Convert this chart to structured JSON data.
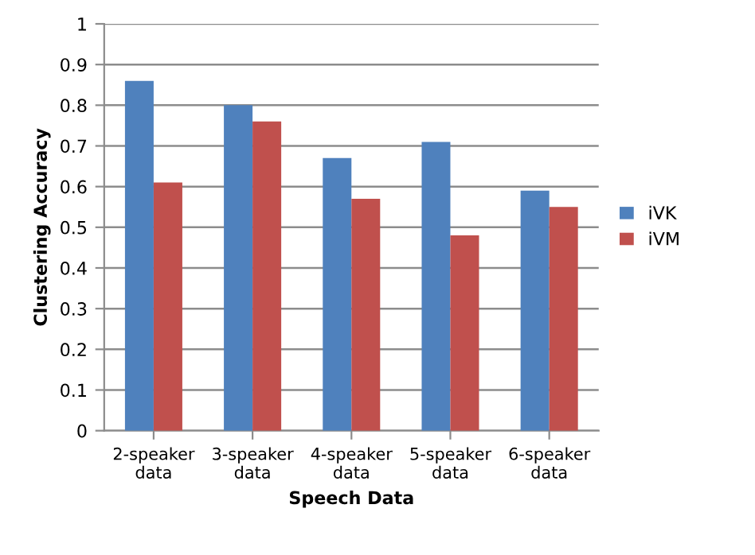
{
  "chart_data": {
    "type": "bar",
    "xlabel": "Speech Data",
    "ylabel": "Clustering Accuracy",
    "categories": [
      "2-speaker\ndata",
      "3-speaker\ndata",
      "4-speaker\ndata",
      "5-speaker\ndata",
      "6-speaker\ndata"
    ],
    "series": [
      {
        "name": "iVK",
        "color": "#4f81bd",
        "values": [
          0.86,
          0.8,
          0.67,
          0.71,
          0.59
        ]
      },
      {
        "name": "iVM",
        "color": "#c0504d",
        "values": [
          0.61,
          0.76,
          0.57,
          0.48,
          0.55
        ]
      }
    ],
    "ylim": [
      0,
      1
    ],
    "yticks": [
      0,
      0.1,
      0.2,
      0.3,
      0.4,
      0.5,
      0.6,
      0.7,
      0.8,
      0.9,
      1
    ],
    "grid": "y",
    "legend": "right"
  }
}
